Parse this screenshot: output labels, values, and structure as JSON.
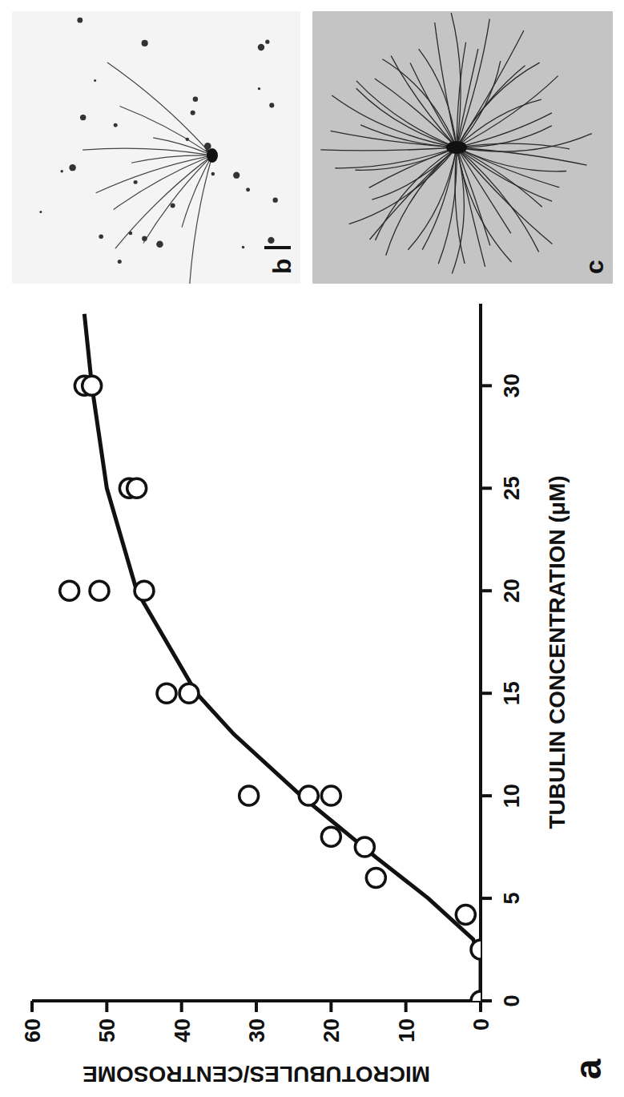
{
  "chart_data": {
    "type": "scatter",
    "panel": "a",
    "x_label": "TUBULIN CONCENTRATION (μM)",
    "y_label": "MICROTUBULES/CENTROSOME",
    "series": [
      {
        "type": "scatter",
        "marker": "circle",
        "color": "#111111",
        "x": [
          0,
          2.5,
          4.2,
          6,
          7.5,
          8,
          10,
          10,
          10,
          15,
          15,
          20,
          20,
          20,
          25,
          25,
          30,
          30
        ],
        "values": [
          0,
          0,
          2,
          14,
          15.5,
          20,
          31,
          23,
          20,
          42,
          39,
          55,
          51,
          45,
          47,
          46,
          53,
          52
        ]
      },
      {
        "type": "line",
        "line_style": "solid",
        "color": "#111111",
        "x": [
          0,
          2,
          3,
          5,
          7,
          10,
          13,
          15,
          20,
          25,
          30,
          33.5
        ],
        "values": [
          0,
          0,
          1,
          7,
          14,
          24,
          33,
          38,
          46,
          50,
          52,
          53
        ]
      }
    ],
    "xlim": [
      0,
      34
    ],
    "ylim": [
      0,
      60
    ],
    "xticks": [
      0,
      5,
      10,
      15,
      20,
      25,
      30
    ],
    "yticks": [
      0,
      10,
      20,
      30,
      40,
      50,
      60
    ],
    "grid": false
  },
  "micrographs": [
    {
      "label": "b"
    },
    {
      "label": "c"
    }
  ]
}
